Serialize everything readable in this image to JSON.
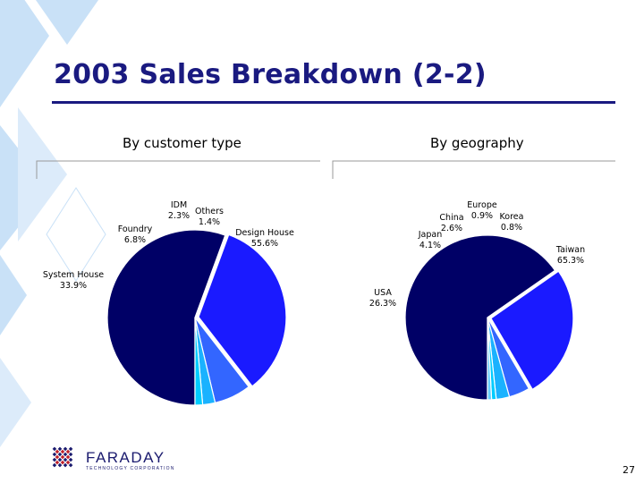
{
  "slide": {
    "title": "2003 Sales Breakdown (2-2)",
    "page_number": "27",
    "logo_name": "FARADAY",
    "logo_tagline": "TECHNOLOGY CORPORATION"
  },
  "colors": {
    "title": "#1a1a80",
    "series_dark": "#000066",
    "series_blue": "#1a1aff",
    "series_mid": "#3366ff",
    "series_sky": "#1ab2ff",
    "series_cyan": "#00ccff",
    "series_light": "#66ccff",
    "logo_red": "#c0202a",
    "logo_navy": "#1a1a6e"
  },
  "chart_data": [
    {
      "type": "pie",
      "title": "By customer type",
      "categories": [
        "Design House",
        "System House",
        "Foundry",
        "IDM",
        "Others"
      ],
      "values": [
        55.6,
        33.9,
        6.8,
        2.3,
        1.4
      ],
      "labels": [
        "55.6%",
        "33.9%",
        "6.8%",
        "2.3%",
        "1.4%"
      ],
      "colors": [
        "#000066",
        "#1a1aff",
        "#3366ff",
        "#1ab2ff",
        "#00ccff"
      ]
    },
    {
      "type": "pie",
      "title": "By geography",
      "categories": [
        "Taiwan",
        "USA",
        "Japan",
        "China",
        "Europe",
        "Korea"
      ],
      "values": [
        65.3,
        26.3,
        4.1,
        2.6,
        0.9,
        0.8
      ],
      "labels": [
        "65.3%",
        "26.3%",
        "4.1%",
        "2.6%",
        "0.9%",
        "0.8%"
      ],
      "colors": [
        "#000066",
        "#1a1aff",
        "#3366ff",
        "#1ab2ff",
        "#00ccff",
        "#66ccff"
      ]
    }
  ]
}
